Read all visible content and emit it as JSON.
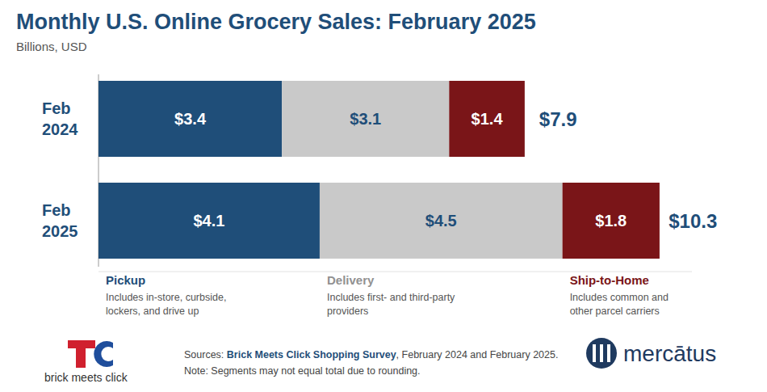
{
  "chart_data": {
    "type": "bar",
    "orientation": "horizontal",
    "stacked": true,
    "data_labels": true,
    "tick_labels": "y",
    "title": "Monthly U.S. Online Grocery Sales: February 2025",
    "subtitle": "Billions, USD",
    "categories": [
      "Feb 2024",
      "Feb 2025"
    ],
    "xlim": [
      0,
      11
    ],
    "series": [
      {
        "name": "Pickup",
        "description": "Includes in-store, curbside, lockers, and drive up",
        "color": "#1f4e79",
        "values": [
          3.4,
          4.1
        ],
        "value_labels": [
          "$3.4",
          "$4.1"
        ]
      },
      {
        "name": "Delivery",
        "description": "Includes first- and third-party providers",
        "color": "#c9c9c9",
        "values": [
          3.1,
          4.5
        ],
        "value_labels": [
          "$3.1",
          "$4.5"
        ]
      },
      {
        "name": "Ship-to-Home",
        "description": "Includes common and other parcel carriers",
        "color": "#7a1518",
        "values": [
          1.4,
          1.8
        ],
        "value_labels": [
          "$1.4",
          "$1.8"
        ]
      }
    ],
    "totals": {
      "values": [
        7.9,
        10.3
      ],
      "value_labels": [
        "$7.9",
        "$10.3"
      ]
    },
    "source": [
      "Sources: ",
      "Brick Meets Click Shopping Survey",
      ", February 2024 and February 2025."
    ],
    "note": "Note: Segments may not equal total due to rounding.",
    "logos": [
      "brick meets click",
      "mercātus"
    ]
  }
}
